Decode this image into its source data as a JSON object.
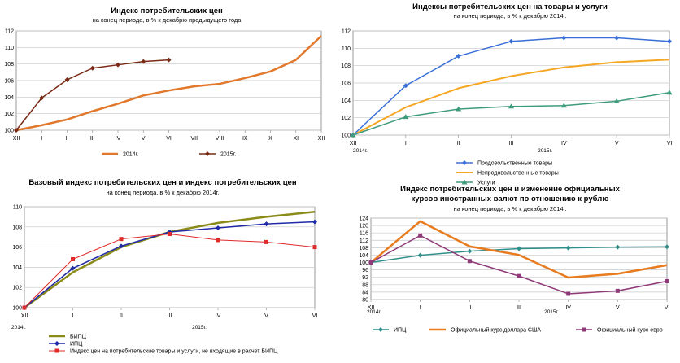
{
  "chart_data": [
    {
      "type": "line",
      "title": "Индекс потребительских цен",
      "subtitle": "на конец периода, в % к декабрю предыдущего года",
      "categories": [
        "XII",
        "I",
        "II",
        "III",
        "IV",
        "V",
        "VI",
        "VII",
        "VIII",
        "IX",
        "X",
        "XI",
        "XII"
      ],
      "ylim": [
        100,
        112
      ],
      "yticks": [
        100,
        102,
        104,
        106,
        108,
        110,
        112
      ],
      "grid": true,
      "legend_position": "bottom",
      "series": [
        {
          "name": "2014г.",
          "color": "#e2782b",
          "marker": "none",
          "width": 2.5,
          "values": [
            100,
            100.6,
            101.3,
            102.3,
            103.2,
            104.2,
            104.8,
            105.3,
            105.6,
            106.3,
            107.1,
            108.5,
            111.4
          ]
        },
        {
          "name": "2015г.",
          "color": "#7a2a16",
          "marker": "diamond",
          "width": 1.5,
          "values": [
            100,
            103.9,
            106.1,
            107.5,
            107.9,
            108.3,
            108.5,
            null,
            null,
            null,
            null,
            null,
            null
          ]
        }
      ]
    },
    {
      "type": "line",
      "title": "Индексы потребительских цен на товары и  услуги",
      "subtitle": "на конец периода, в % к декабрю 2014г.",
      "categories": [
        "XII",
        "I",
        "II",
        "III",
        "IV",
        "V",
        "VI"
      ],
      "year_labels": [
        "2014г.",
        "2015г."
      ],
      "ylim": [
        100,
        112
      ],
      "yticks": [
        100,
        102,
        104,
        106,
        108,
        110,
        112
      ],
      "grid": true,
      "legend_position": "bottom",
      "series": [
        {
          "name": "Продовольственные товары",
          "color": "#3a6fd8",
          "marker": "diamond",
          "width": 1.5,
          "values": [
            100,
            105.7,
            109.1,
            110.8,
            111.2,
            111.2,
            110.8
          ]
        },
        {
          "name": "Непродовольственные товары",
          "color": "#f5a623",
          "marker": "none",
          "width": 2,
          "values": [
            100,
            103.2,
            105.4,
            106.8,
            107.8,
            108.4,
            108.7
          ]
        },
        {
          "name": "Услуги",
          "color": "#3f9b7d",
          "marker": "triangle",
          "width": 1.5,
          "values": [
            100,
            102.1,
            103.0,
            103.3,
            103.4,
            103.9,
            104.9
          ]
        }
      ]
    },
    {
      "type": "line",
      "title": "Базовый индекс потребительских цен и индекс потребительских цен",
      "subtitle": "на конец периода, в % к декабрю 2014г.",
      "categories": [
        "XII",
        "I",
        "II",
        "III",
        "IV",
        "V",
        "VI"
      ],
      "year_labels": [
        "2014г.",
        "2015г."
      ],
      "ylim": [
        100,
        110
      ],
      "yticks": [
        100,
        102,
        104,
        106,
        108,
        110
      ],
      "grid": true,
      "legend_position": "bottom",
      "series": [
        {
          "name": "БИПЦ",
          "color": "#8b8b1a",
          "marker": "none",
          "width": 2.5,
          "values": [
            100,
            103.5,
            106.0,
            107.5,
            108.4,
            109.0,
            109.5
          ]
        },
        {
          "name": "ИПЦ",
          "color": "#1f2aa8",
          "marker": "diamond",
          "width": 1.5,
          "values": [
            100,
            103.9,
            106.1,
            107.5,
            107.9,
            108.3,
            108.5
          ]
        },
        {
          "name": "Индекс цен на потребительские товары и услуги, не входящие в расчет БИПЦ",
          "color": "#e02a2a",
          "marker": "square",
          "width": 1,
          "values": [
            100,
            104.8,
            106.8,
            107.3,
            106.7,
            106.5,
            106.0
          ]
        }
      ]
    },
    {
      "type": "line",
      "title": "Индекс потребительских цен и изменение официальных курсов иностранных валют по отношению к рублю",
      "title_lines": [
        "Индекс потребительских цен и изменение официальных",
        "курсов иностранных валют по отношению к рублю"
      ],
      "subtitle": "на конец периода, в % к декабрю 2014г.",
      "categories": [
        "XII",
        "I",
        "II",
        "III",
        "IV",
        "V",
        "VI"
      ],
      "year_labels": [
        "2014г.",
        "2015г."
      ],
      "ylim": [
        80,
        124
      ],
      "yticks": [
        80,
        84,
        88,
        92,
        96,
        100,
        104,
        108,
        112,
        116,
        120,
        124
      ],
      "grid": true,
      "legend_position": "bottom",
      "series": [
        {
          "name": "ИПЦ",
          "color": "#2f8f8a",
          "marker": "diamond",
          "width": 1.5,
          "values": [
            100,
            103.9,
            106.1,
            107.5,
            107.9,
            108.3,
            108.5
          ]
        },
        {
          "name": "Официальный курс доллара США",
          "color": "#e87b1e",
          "marker": "none",
          "width": 2.5,
          "values": [
            100,
            122.3,
            108.7,
            104.1,
            91.9,
            93.9,
            98.6
          ]
        },
        {
          "name": "Официальный курс евро",
          "color": "#8e3a78",
          "marker": "square",
          "width": 1.5,
          "values": [
            100,
            114.6,
            100.8,
            92.7,
            83.1,
            84.7,
            89.9
          ]
        }
      ]
    }
  ]
}
